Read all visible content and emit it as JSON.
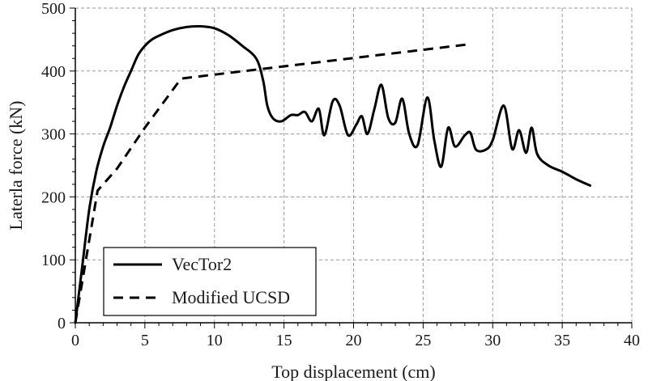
{
  "chart_data": {
    "type": "line",
    "xlabel": "Top displacement (cm)",
    "ylabel": "Laterla force (kN)",
    "xlim": [
      0,
      40
    ],
    "ylim": [
      0,
      500
    ],
    "x_ticks": [
      0,
      5,
      10,
      15,
      20,
      25,
      30,
      35,
      40
    ],
    "y_ticks": [
      0,
      100,
      200,
      300,
      400,
      500
    ],
    "grid": true,
    "legend_position": "bottom-left",
    "series": [
      {
        "name": "VecTor2",
        "line_style": "solid",
        "color": "#000000",
        "points": [
          [
            0,
            0
          ],
          [
            0.5,
            90
          ],
          [
            1.0,
            180
          ],
          [
            1.5,
            240
          ],
          [
            2.0,
            280
          ],
          [
            2.5,
            310
          ],
          [
            3.0,
            345
          ],
          [
            3.5,
            375
          ],
          [
            4.0,
            400
          ],
          [
            4.5,
            425
          ],
          [
            5.0,
            440
          ],
          [
            5.5,
            450
          ],
          [
            6.0,
            456
          ],
          [
            7.0,
            465
          ],
          [
            8.0,
            470
          ],
          [
            9.0,
            471
          ],
          [
            10.0,
            468
          ],
          [
            11.0,
            457
          ],
          [
            12.0,
            440
          ],
          [
            13.0,
            420
          ],
          [
            13.5,
            385
          ],
          [
            13.8,
            345
          ],
          [
            14.2,
            325
          ],
          [
            14.8,
            320
          ],
          [
            15.5,
            330
          ],
          [
            16.0,
            330
          ],
          [
            16.5,
            335
          ],
          [
            17.0,
            320
          ],
          [
            17.5,
            340
          ],
          [
            17.9,
            298
          ],
          [
            18.5,
            352
          ],
          [
            19.0,
            345
          ],
          [
            19.6,
            298
          ],
          [
            20.2,
            315
          ],
          [
            20.6,
            328
          ],
          [
            21.0,
            300
          ],
          [
            21.5,
            340
          ],
          [
            22.0,
            378
          ],
          [
            22.5,
            325
          ],
          [
            23.0,
            318
          ],
          [
            23.5,
            356
          ],
          [
            24.0,
            300
          ],
          [
            24.6,
            282
          ],
          [
            25.3,
            358
          ],
          [
            25.8,
            290
          ],
          [
            26.3,
            248
          ],
          [
            26.8,
            310
          ],
          [
            27.3,
            280
          ],
          [
            28.0,
            298
          ],
          [
            28.4,
            302
          ],
          [
            28.8,
            275
          ],
          [
            29.5,
            275
          ],
          [
            30.0,
            290
          ],
          [
            30.8,
            345
          ],
          [
            31.4,
            276
          ],
          [
            31.9,
            306
          ],
          [
            32.4,
            270
          ],
          [
            32.8,
            310
          ],
          [
            33.2,
            268
          ],
          [
            34.0,
            250
          ],
          [
            35.0,
            240
          ],
          [
            36.0,
            228
          ],
          [
            37.0,
            218
          ]
        ]
      },
      {
        "name": "Modified UCSD",
        "line_style": "dashed",
        "color": "#000000",
        "points": [
          [
            0,
            0
          ],
          [
            1.6,
            210
          ],
          [
            3.0,
            245
          ],
          [
            5.0,
            310
          ],
          [
            7.6,
            388
          ],
          [
            28.5,
            443
          ]
        ]
      }
    ]
  }
}
